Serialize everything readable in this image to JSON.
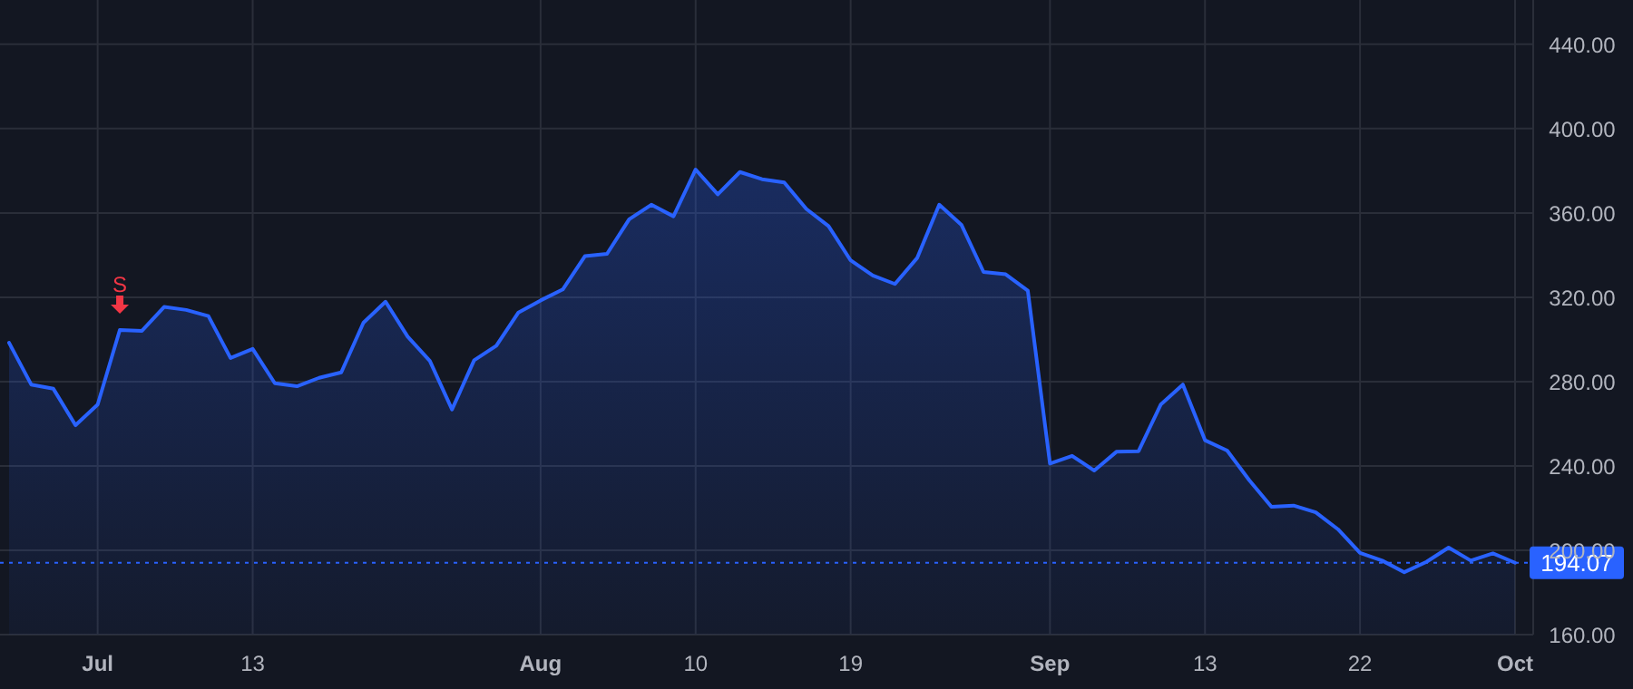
{
  "chart_data": {
    "type": "area",
    "categories": [
      null,
      null,
      null,
      null,
      "Jul",
      null,
      null,
      null,
      null,
      null,
      null,
      "13",
      null,
      null,
      null,
      null,
      null,
      null,
      null,
      null,
      null,
      null,
      null,
      null,
      "Aug",
      null,
      null,
      null,
      null,
      null,
      null,
      "10",
      null,
      null,
      null,
      null,
      null,
      null,
      "19",
      null,
      null,
      null,
      null,
      null,
      null,
      null,
      null,
      "Sep",
      null,
      null,
      null,
      null,
      null,
      null,
      "13",
      null,
      null,
      null,
      null,
      null,
      null,
      "22",
      null,
      null,
      null,
      null,
      null,
      null,
      "Oct"
    ],
    "series": [
      {
        "color": "#2962ff",
        "values": [
          298.4,
          278.6,
          276.6,
          259.3,
          269.1,
          304.5,
          304.1,
          315.4,
          314.0,
          311.1,
          291.2,
          295.5,
          279.2,
          277.8,
          281.8,
          284.4,
          307.9,
          317.9,
          301.3,
          289.8,
          266.8,
          290.1,
          297.0,
          312.8,
          318.5,
          323.7,
          339.5,
          340.6,
          357.0,
          363.9,
          358.4,
          380.6,
          368.8,
          379.4,
          376.0,
          374.5,
          361.9,
          353.8,
          337.5,
          330.3,
          326.3,
          338.6,
          363.9,
          354.4,
          332.0,
          330.9,
          323.1,
          241.1,
          244.8,
          237.8,
          246.7,
          247.0,
          269.1,
          278.6,
          252.2,
          247.3,
          233.2,
          220.6,
          221.2,
          218.0,
          210.0,
          198.8,
          195.1,
          189.6,
          194.5,
          201.3,
          195.1,
          198.5,
          194.07
        ]
      }
    ],
    "ylim": [
      160,
      461
    ],
    "yticks": [
      {
        "value": 160,
        "label": "160.00"
      },
      {
        "value": 200,
        "label": "200.00"
      },
      {
        "value": 240,
        "label": "240.00"
      },
      {
        "value": 280,
        "label": "280.00"
      },
      {
        "value": 320,
        "label": "320.00"
      },
      {
        "value": 360,
        "label": "360.00"
      },
      {
        "value": 400,
        "label": "400.00"
      },
      {
        "value": 440,
        "label": "440.00"
      }
    ],
    "grid": true,
    "ref_lines": [
      {
        "axis": "y",
        "value": 194.07,
        "label": "194.07",
        "color": "#2962ff",
        "line_style": "dotted"
      }
    ],
    "annotations": [
      {
        "text": "S",
        "y": 304.5
      }
    ]
  }
}
